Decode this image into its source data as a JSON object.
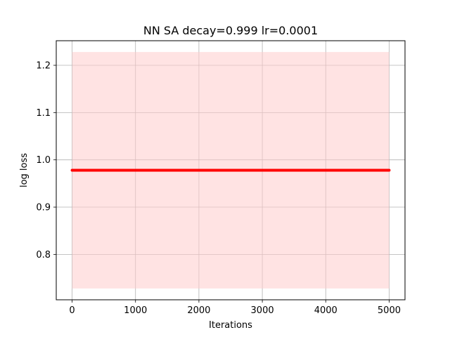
{
  "chart_data": {
    "type": "line",
    "title": "NN SA decay=0.999 lr=0.0001",
    "xlabel": "Iterations",
    "ylabel": "log loss",
    "xlim": [
      -250,
      5250
    ],
    "ylim": [
      0.704,
      1.252
    ],
    "grid": true,
    "xticks": [
      0,
      1000,
      2000,
      3000,
      4000,
      5000
    ],
    "yticks": [
      0.8,
      0.9,
      1.0,
      1.1,
      1.2
    ],
    "xtick_labels": [
      "0",
      "1000",
      "2000",
      "3000",
      "4000",
      "5000"
    ],
    "ytick_labels": [
      "0.8",
      "0.9",
      "1.0",
      "1.1",
      "1.2"
    ],
    "series": [
      {
        "color": "#ff0000",
        "x": [
          0,
          5000
        ],
        "y": [
          0.978,
          0.978
        ],
        "band_lower": [
          0.728,
          0.728
        ],
        "band_upper": [
          1.228,
          1.228
        ],
        "band_color": "#ffcccc"
      }
    ]
  }
}
